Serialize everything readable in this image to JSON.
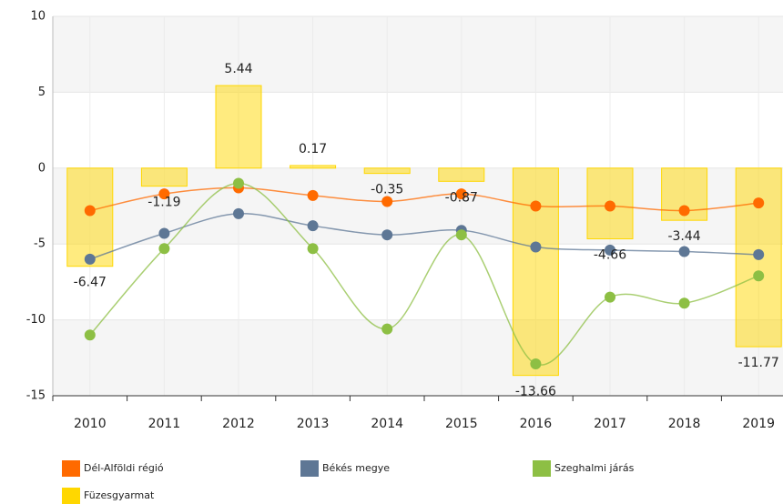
{
  "chart_data": {
    "type": "combo",
    "categories": [
      "2010",
      "2011",
      "2012",
      "2013",
      "2014",
      "2015",
      "2016",
      "2017",
      "2018",
      "2019"
    ],
    "series": [
      {
        "name": "Dél-Alföldi régió",
        "type": "line",
        "color": "#ff6a00",
        "values": [
          -2.8,
          -1.7,
          -1.3,
          -1.8,
          -2.2,
          -1.7,
          -2.5,
          -2.5,
          -2.8,
          -2.3
        ]
      },
      {
        "name": "Békés megye",
        "type": "line",
        "color": "#5e7795",
        "values": [
          -6.0,
          -4.3,
          -3.0,
          -3.8,
          -4.4,
          -4.1,
          -5.2,
          -5.4,
          -5.5,
          -5.7
        ]
      },
      {
        "name": "Szeghalmi járás",
        "type": "line",
        "color": "#8dbf44",
        "values": [
          -11.0,
          -5.3,
          -1.0,
          -5.3,
          -10.6,
          -4.4,
          -12.9,
          -8.5,
          -8.9,
          -7.1
        ]
      },
      {
        "name": "Füzesgyarmat",
        "type": "bar",
        "color": "#ffd700",
        "values": [
          -6.47,
          -1.19,
          5.44,
          0.17,
          -0.35,
          -0.87,
          -13.66,
          -4.66,
          -3.44,
          -11.77
        ]
      }
    ],
    "ylim": [
      -15,
      10
    ],
    "yticks": [
      -15,
      -10,
      -5,
      0,
      5,
      10
    ],
    "grid": true,
    "legend": "bottom"
  }
}
